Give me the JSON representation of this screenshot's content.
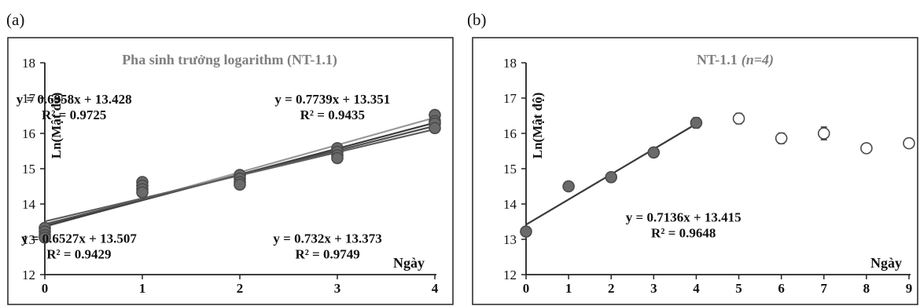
{
  "chart_data": [
    {
      "panel_label": "(a)",
      "type": "scatter",
      "title": "Pha sinh trưởng logarithm (NT-1.1)",
      "xlabel": "Ngày",
      "ylabel": "Ln(Mật độ)",
      "xlim": [
        0,
        4
      ],
      "ylim": [
        12,
        18
      ],
      "xticks": [
        "0",
        "1",
        "2",
        "3",
        "4"
      ],
      "yticks": [
        "12",
        "13",
        "14",
        "15",
        "16",
        "17",
        "18"
      ],
      "grid": false,
      "series": [
        {
          "x": [
            0,
            1,
            2,
            3,
            4
          ],
          "y": [
            13.32,
            14.62,
            14.82,
            15.58,
            16.52
          ],
          "trendline": {
            "slope": 0.7739,
            "intercept": 13.351,
            "color": "#9a9a9a"
          }
        },
        {
          "x": [
            0,
            1,
            2,
            3,
            4
          ],
          "y": [
            13.22,
            14.52,
            14.72,
            15.48,
            16.35
          ],
          "trendline": {
            "slope": 0.732,
            "intercept": 13.373,
            "color": "#3a3a3a"
          }
        },
        {
          "x": [
            0,
            1,
            2,
            3,
            4
          ],
          "y": [
            13.12,
            14.42,
            14.62,
            15.38,
            16.28
          ],
          "trendline": {
            "slope": 0.6958,
            "intercept": 13.428,
            "color": "#4d4d4d"
          }
        },
        {
          "x": [
            0,
            1,
            2,
            3,
            4
          ],
          "y": [
            13.05,
            14.33,
            14.55,
            15.3,
            16.15
          ],
          "trendline": {
            "slope": 0.6527,
            "intercept": 13.507,
            "color": "#5e5e5e"
          }
        }
      ],
      "annotations": [
        {
          "text": "y = 0.6958x + 13.428",
          "text2": "R² = 0.9725",
          "x": 0.3,
          "y": 16.85
        },
        {
          "text": "y = 0.7739x + 13.351",
          "text2": "R² = 0.9435",
          "x": 2.95,
          "y": 16.85
        },
        {
          "text": "y = 0.6527x + 13.507",
          "text2": "R² = 0.9429",
          "x": 0.35,
          "y": 12.9
        },
        {
          "text": "y = 0.732x + 13.373",
          "text2": "R² = 0.9749",
          "x": 2.9,
          "y": 12.9
        }
      ],
      "colors": {
        "point": "#6a6a6a",
        "point_edge": "#4a4a4a",
        "title": "#7f7f7f"
      }
    },
    {
      "panel_label": "(b)",
      "type": "scatter",
      "title": "NT-1.1",
      "subtitle": "(n=4)",
      "xlabel": "Ngày",
      "ylabel": "Ln(Mật độ)",
      "xlim": [
        0,
        9
      ],
      "ylim": [
        12,
        18
      ],
      "xticks": [
        "0",
        "1",
        "2",
        "3",
        "4",
        "5",
        "6",
        "7",
        "8",
        "9"
      ],
      "yticks": [
        "12",
        "13",
        "14",
        "15",
        "16",
        "17",
        "18"
      ],
      "grid": false,
      "series": [
        {
          "x": [
            0,
            1,
            2,
            3,
            4
          ],
          "y": [
            13.22,
            14.5,
            14.76,
            15.46,
            16.3
          ],
          "errors": [
            0.08,
            0.06,
            0.08,
            0.08,
            0.15
          ],
          "filled": true,
          "trendline": {
            "slope": 0.7136,
            "intercept": 13.415,
            "color": "#3a3a3a"
          }
        },
        {
          "x": [
            5,
            6,
            7,
            8,
            9
          ],
          "y": [
            16.42,
            15.86,
            16.0,
            15.58,
            15.72
          ],
          "errors": [
            0.15,
            0.15,
            0.18,
            0.09,
            0.12
          ],
          "filled": false
        }
      ],
      "annotations": [
        {
          "text": "y = 0.7136x + 13.415",
          "text2": "R² = 0.9648",
          "x": 3.7,
          "y": 13.5
        }
      ],
      "colors": {
        "point": "#6a6a6a",
        "point_edge": "#4a4a4a",
        "title": "#7f7f7f"
      }
    }
  ]
}
